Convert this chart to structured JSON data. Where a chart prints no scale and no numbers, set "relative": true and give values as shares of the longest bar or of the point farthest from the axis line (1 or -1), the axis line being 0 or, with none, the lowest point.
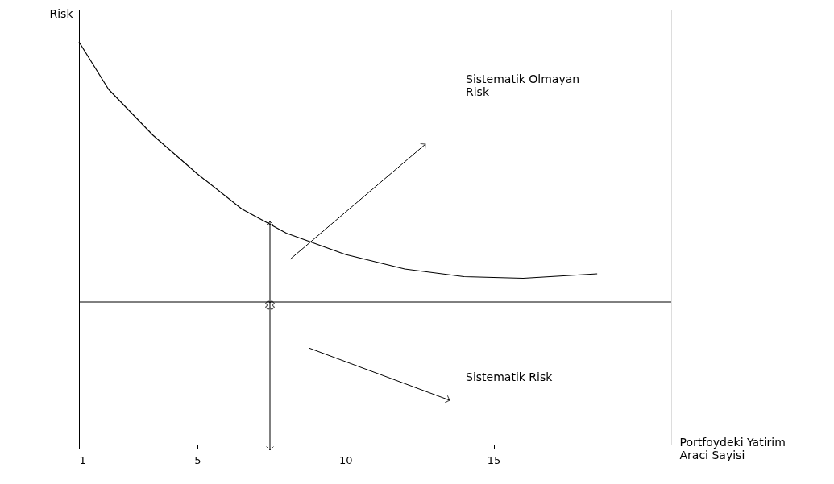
{
  "chart_data": {
    "type": "line",
    "relative": true,
    "xlabel": "Portfoydeki Yatirim\nAraci Sayisi",
    "ylabel": "Risk",
    "x": [
      1,
      2,
      3.5,
      5,
      6.5,
      8,
      10,
      12,
      14,
      16,
      18.5
    ],
    "series": [
      {
        "color": "#000000",
        "values": [
          1.0,
          0.882,
          0.768,
          0.672,
          0.585,
          0.525,
          0.472,
          0.436,
          0.417,
          0.413,
          0.424
        ]
      }
    ],
    "xlim": [
      1,
      21
    ],
    "xticks": [
      1,
      5,
      10,
      15
    ],
    "ref_lines": [
      {
        "axis": "y",
        "value": 0.354,
        "color": "#000000"
      }
    ],
    "annotations": [
      "Sistematik Olmayan\nRisk",
      "Sistematik Risk"
    ],
    "grid": false,
    "marker": "none",
    "line_style": "solid"
  }
}
